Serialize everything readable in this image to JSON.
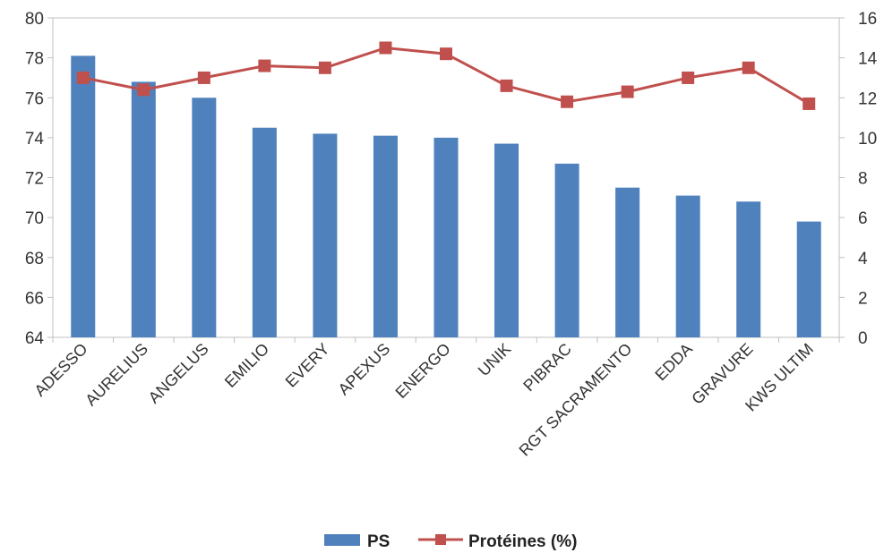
{
  "chart_data": {
    "type": "bar",
    "categories": [
      "ADESSO",
      "AURELIUS",
      "ANGELUS",
      "EMILIO",
      "EVERY",
      "APEXUS",
      "ENERGO",
      "UNIK",
      "PIBRAC",
      "RGT SACRAMENTO",
      "EDDA",
      "GRAVURE",
      "KWS ULTIM"
    ],
    "series": [
      {
        "name": "PS",
        "type": "bar",
        "axis": "left",
        "color": "#4f81bd",
        "values": [
          78.1,
          76.8,
          76.0,
          74.5,
          74.2,
          74.1,
          74.0,
          73.7,
          72.7,
          71.5,
          71.1,
          70.8,
          69.8
        ]
      },
      {
        "name": "Protéines (%)",
        "type": "line",
        "axis": "right",
        "color": "#c0504d",
        "values": [
          13.0,
          12.4,
          13.0,
          13.6,
          13.5,
          14.5,
          14.2,
          12.6,
          11.8,
          12.3,
          13.0,
          13.5,
          11.7
        ]
      }
    ],
    "y_left": {
      "min": 64,
      "max": 80,
      "step": 2,
      "ticks": [
        "64",
        "66",
        "68",
        "70",
        "72",
        "74",
        "76",
        "78",
        "80"
      ]
    },
    "y_right": {
      "min": 0,
      "max": 16,
      "step": 2,
      "ticks": [
        "0",
        "2",
        "4",
        "6",
        "8",
        "10",
        "12",
        "14",
        "16"
      ]
    },
    "grid": false,
    "legend_position": "bottom",
    "title": "",
    "xlabel": "",
    "ylabel": ""
  }
}
